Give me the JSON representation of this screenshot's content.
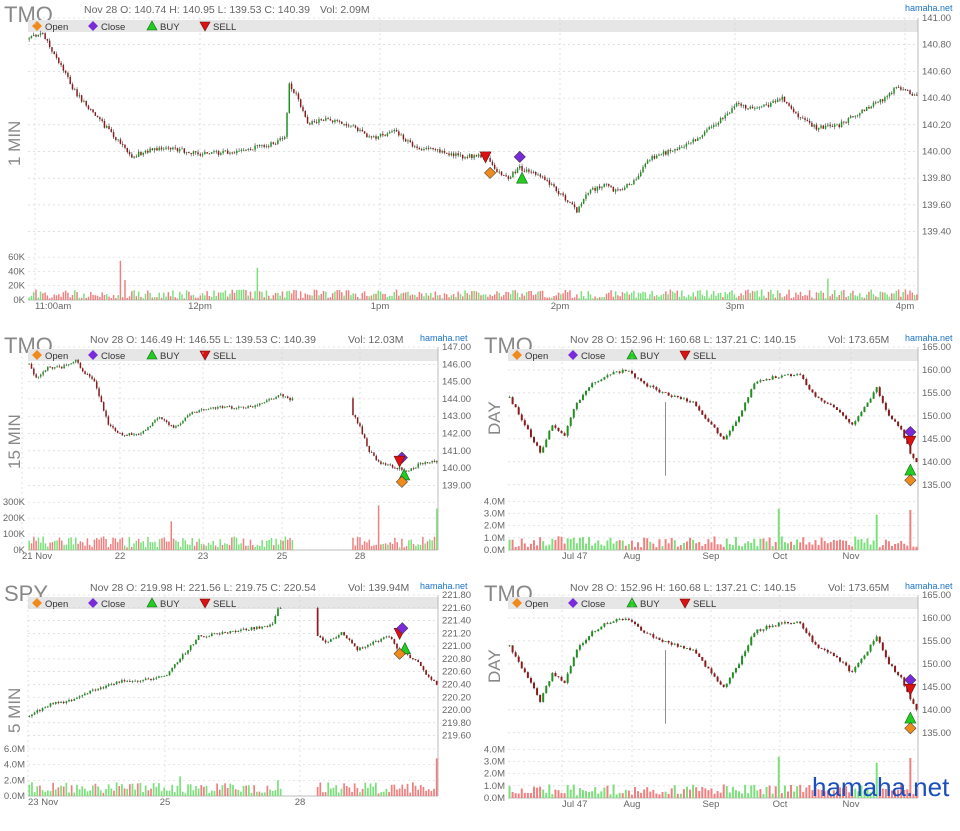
{
  "site": "hamaha.net",
  "watermark": "hamaha.net",
  "legend": {
    "open": "Open",
    "close": "Close",
    "buy": "BUY",
    "sell": "SELL"
  },
  "colors": {
    "up": "#1f8f1f",
    "down": "#8b1a1a",
    "vol_up": "#7be07b",
    "vol_down": "#f08080",
    "open": "#f08a1c",
    "close": "#7a2ad8",
    "buy": "#22cc22",
    "sell": "#dd1111",
    "band": "#e6e6e6",
    "grid": "#cfcfcf",
    "text": "#666666",
    "link": "#1a73c9"
  },
  "chart_data": [
    {
      "id": "tmo1m",
      "type": "candlestick",
      "symbol": "TMO",
      "period": "1 MIN",
      "info": "Nov 28 O: 140.74 H: 140.95 L: 139.53 C: 140.39",
      "vol": "Vol: 2.09M",
      "ylim": [
        139.3,
        141.0
      ],
      "yticks": [
        "141.00",
        "140.80",
        "140.60",
        "140.40",
        "140.20",
        "140.00",
        "139.80",
        "139.60",
        "139.40"
      ],
      "vlim": [
        0,
        70000
      ],
      "vticks": [
        "60K",
        "40K",
        "20K",
        "0K"
      ],
      "xticks": [
        "11:00am",
        "12pm",
        "1pm",
        "2pm",
        "3pm",
        "4pm"
      ],
      "anchors": [
        [
          0,
          140.84
        ],
        [
          5,
          140.9
        ],
        [
          12,
          140.7
        ],
        [
          20,
          140.45
        ],
        [
          30,
          140.25
        ],
        [
          38,
          140.1
        ],
        [
          45,
          139.95
        ],
        [
          50,
          140.0
        ],
        [
          60,
          140.03
        ],
        [
          75,
          139.98
        ],
        [
          90,
          140.0
        ],
        [
          105,
          140.05
        ],
        [
          112,
          140.1
        ],
        [
          114,
          140.5
        ],
        [
          118,
          140.4
        ],
        [
          122,
          140.2
        ],
        [
          130,
          140.25
        ],
        [
          140,
          140.2
        ],
        [
          150,
          140.1
        ],
        [
          160,
          140.15
        ],
        [
          170,
          140.03
        ],
        [
          180,
          140.0
        ],
        [
          190,
          139.96
        ],
        [
          200,
          139.97
        ],
        [
          205,
          139.85
        ],
        [
          210,
          139.8
        ],
        [
          215,
          139.88
        ],
        [
          225,
          139.8
        ],
        [
          235,
          139.65
        ],
        [
          240,
          139.55
        ],
        [
          245,
          139.7
        ],
        [
          252,
          139.75
        ],
        [
          258,
          139.7
        ],
        [
          265,
          139.78
        ],
        [
          272,
          139.95
        ],
        [
          280,
          140.0
        ],
        [
          290,
          140.07
        ],
        [
          300,
          140.2
        ],
        [
          310,
          140.35
        ],
        [
          320,
          140.32
        ],
        [
          330,
          140.4
        ],
        [
          338,
          140.25
        ],
        [
          345,
          140.18
        ],
        [
          355,
          140.2
        ],
        [
          365,
          140.3
        ],
        [
          375,
          140.4
        ],
        [
          380,
          140.48
        ],
        [
          388,
          140.42
        ]
      ],
      "volume_spikes": [
        [
          40,
          55000
        ],
        [
          42,
          28000
        ],
        [
          100,
          45000
        ],
        [
          205,
          12000
        ],
        [
          216,
          9000
        ],
        [
          350,
          30000
        ],
        [
          392,
          48000
        ],
        [
          400,
          50000
        ]
      ],
      "markers": [
        {
          "type": "sell",
          "x": 200,
          "price": 139.96
        },
        {
          "type": "open",
          "x": 202,
          "price": 139.84
        },
        {
          "type": "close",
          "x": 215,
          "price": 139.96
        },
        {
          "type": "buy",
          "x": 216,
          "price": 139.8
        }
      ]
    },
    {
      "id": "tmo15",
      "type": "candlestick",
      "symbol": "TMO",
      "period": "15 MIN",
      "info": "Nov 28 O: 146.49 H: 146.55 L: 139.53 C: 140.39",
      "vol": "Vol: 12.03M",
      "ylim": [
        138.5,
        147.0
      ],
      "yticks": [
        "147.00",
        "146.00",
        "145.00",
        "144.00",
        "143.00",
        "142.00",
        "141.00",
        "140.00",
        "139.00"
      ],
      "vlim": [
        0,
        320000
      ],
      "vticks": [
        "300K",
        "200K",
        "100K",
        "0K"
      ],
      "xticks": [
        "21 Nov",
        "22",
        "23",
        "25",
        "28"
      ],
      "anchors": [
        [
          0,
          146.0
        ],
        [
          3,
          145.2
        ],
        [
          8,
          145.8
        ],
        [
          14,
          145.8
        ],
        [
          20,
          146.2
        ],
        [
          24,
          145.5
        ],
        [
          28,
          145.0
        ],
        [
          34,
          142.5
        ],
        [
          40,
          141.9
        ],
        [
          48,
          142.0
        ],
        [
          52,
          142.5
        ],
        [
          56,
          143.0
        ],
        [
          62,
          142.3
        ],
        [
          70,
          143.2
        ],
        [
          80,
          143.5
        ],
        [
          95,
          143.5
        ],
        [
          102,
          143.9
        ],
        [
          108,
          144.2
        ],
        [
          112,
          144.0
        ],
        [
          140,
          143.0
        ],
        [
          146,
          141.0
        ],
        [
          150,
          140.3
        ],
        [
          158,
          140.0
        ],
        [
          163,
          139.8
        ],
        [
          168,
          140.3
        ],
        [
          175,
          140.4
        ]
      ],
      "gap": [
        113,
        139
      ],
      "volume_spikes": [
        [
          61,
          180000
        ],
        [
          150,
          280000
        ],
        [
          175,
          260000
        ]
      ],
      "markers": [
        {
          "type": "close",
          "x": 160,
          "price": 140.6
        },
        {
          "type": "sell",
          "x": 159,
          "price": 140.4
        },
        {
          "type": "buy",
          "x": 161,
          "price": 139.6
        },
        {
          "type": "open",
          "x": 160,
          "price": 139.2
        }
      ]
    },
    {
      "id": "tmoday1",
      "type": "candlestick",
      "symbol": "TMO",
      "period": "DAY",
      "info": "Nov 28 O: 152.96 H: 160.68 L: 137.21 C: 140.15",
      "vol": "Vol: 173.65M",
      "ylim": [
        133,
        165
      ],
      "yticks": [
        "165.00",
        "160.00",
        "155.00",
        "150.00",
        "145.00",
        "140.00",
        "135.00"
      ],
      "vlim": [
        0,
        4200000
      ],
      "vticks": [
        "4.0M",
        "3.0M",
        "2.0M",
        "1.0M",
        "0.0M"
      ],
      "xticks": [
        "Jul 47",
        "Aug",
        "Sep",
        "Oct",
        "Nov"
      ],
      "anchors": [
        [
          0,
          154
        ],
        [
          5,
          148
        ],
        [
          10,
          142
        ],
        [
          14,
          148
        ],
        [
          18,
          146
        ],
        [
          22,
          153
        ],
        [
          27,
          157
        ],
        [
          32,
          159
        ],
        [
          38,
          160
        ],
        [
          44,
          157
        ],
        [
          50,
          155
        ],
        [
          55,
          154
        ],
        [
          60,
          153
        ],
        [
          66,
          148
        ],
        [
          70,
          145
        ],
        [
          75,
          150
        ],
        [
          80,
          157
        ],
        [
          84,
          158
        ],
        [
          90,
          159
        ],
        [
          95,
          159
        ],
        [
          100,
          154
        ],
        [
          106,
          152
        ],
        [
          112,
          148
        ],
        [
          116,
          152
        ],
        [
          120,
          156
        ],
        [
          124,
          150
        ],
        [
          128,
          147
        ],
        [
          131,
          142
        ],
        [
          133,
          140
        ]
      ],
      "wicks": [
        [
          51,
          153,
          137
        ]
      ],
      "volume_spikes": [
        [
          88,
          3400000
        ],
        [
          120,
          2900000
        ],
        [
          131,
          3300000
        ]
      ],
      "markers": [
        {
          "type": "close",
          "x": 131,
          "price": 146.5
        },
        {
          "type": "sell",
          "x": 131,
          "price": 144.5
        },
        {
          "type": "buy",
          "x": 131,
          "price": 138.2
        },
        {
          "type": "open",
          "x": 131,
          "price": 136.0
        }
      ]
    },
    {
      "id": "spy5",
      "type": "candlestick",
      "symbol": "SPY",
      "period": "5 MIN",
      "info": "Nov 28 O: 219.98 H: 221.56 L: 219.75 C: 220.54",
      "vol": "Vol: 139.94M",
      "ylim": [
        219.5,
        221.8
      ],
      "yticks": [
        "221.80",
        "221.60",
        "221.40",
        "221.20",
        "221.00",
        "220.80",
        "220.60",
        "220.40",
        "220.20",
        "220.00",
        "219.80",
        "219.60"
      ],
      "vlim": [
        0,
        6500000
      ],
      "vticks": [
        "6.0M",
        "4.0M",
        "2.0M",
        "0.0M"
      ],
      "xticks": [
        "23 Nov",
        "25",
        "28"
      ],
      "anchors": [
        [
          0,
          219.9
        ],
        [
          8,
          220.1
        ],
        [
          16,
          220.15
        ],
        [
          24,
          220.3
        ],
        [
          34,
          220.45
        ],
        [
          46,
          220.48
        ],
        [
          52,
          220.55
        ],
        [
          58,
          220.85
        ],
        [
          64,
          221.15
        ],
        [
          72,
          221.2
        ],
        [
          80,
          221.25
        ],
        [
          88,
          221.3
        ],
        [
          92,
          221.35
        ],
        [
          94,
          221.6
        ],
        [
          98,
          221.62
        ],
        [
          112,
          221.05
        ],
        [
          118,
          221.2
        ],
        [
          124,
          220.95
        ],
        [
          130,
          221.05
        ],
        [
          136,
          221.15
        ],
        [
          140,
          220.9
        ],
        [
          146,
          220.8
        ],
        [
          150,
          220.55
        ],
        [
          154,
          220.4
        ]
      ],
      "gap": [
        95,
        109
      ],
      "volume_spikes": [
        [
          57,
          2500000
        ],
        [
          94,
          2000000
        ],
        [
          154,
          4800000
        ]
      ],
      "markers": [
        {
          "type": "sell",
          "x": 140,
          "price": 221.2
        },
        {
          "type": "close",
          "x": 141,
          "price": 221.28
        },
        {
          "type": "buy",
          "x": 142,
          "price": 220.96
        },
        {
          "type": "open",
          "x": 140,
          "price": 220.88
        }
      ]
    },
    {
      "id": "tmoday2",
      "type": "candlestick",
      "symbol": "TMO",
      "period": "DAY",
      "info": "Nov 28 O: 152.96 H: 160.68 L: 137.21 C: 140.15",
      "vol": "Vol: 173.65M",
      "ylim": [
        133,
        165
      ],
      "yticks": [
        "165.00",
        "160.00",
        "155.00",
        "150.00",
        "145.00",
        "140.00",
        "135.00"
      ],
      "vlim": [
        0,
        4200000
      ],
      "vticks": [
        "4.0M",
        "3.0M",
        "2.0M",
        "1.0M",
        "0.0M"
      ],
      "xticks": [
        "Jul 47",
        "Aug",
        "Sep",
        "Oct",
        "Nov"
      ],
      "anchors": [
        [
          0,
          154
        ],
        [
          5,
          148
        ],
        [
          10,
          142
        ],
        [
          14,
          148
        ],
        [
          18,
          146
        ],
        [
          22,
          153
        ],
        [
          27,
          157
        ],
        [
          32,
          159
        ],
        [
          38,
          160
        ],
        [
          44,
          157
        ],
        [
          50,
          155
        ],
        [
          55,
          154
        ],
        [
          60,
          153
        ],
        [
          66,
          148
        ],
        [
          70,
          145
        ],
        [
          75,
          150
        ],
        [
          80,
          157
        ],
        [
          84,
          158
        ],
        [
          90,
          159
        ],
        [
          95,
          159
        ],
        [
          100,
          154
        ],
        [
          106,
          152
        ],
        [
          112,
          148
        ],
        [
          116,
          152
        ],
        [
          120,
          156
        ],
        [
          124,
          150
        ],
        [
          128,
          147
        ],
        [
          131,
          142
        ],
        [
          133,
          140
        ]
      ],
      "wicks": [
        [
          51,
          153,
          137
        ]
      ],
      "volume_spikes": [
        [
          88,
          3400000
        ],
        [
          120,
          2900000
        ],
        [
          131,
          3300000
        ]
      ],
      "markers": [
        {
          "type": "close",
          "x": 131,
          "price": 146.5
        },
        {
          "type": "sell",
          "x": 131,
          "price": 144.5
        },
        {
          "type": "buy",
          "x": 131,
          "price": 138.2
        },
        {
          "type": "open",
          "x": 131,
          "price": 136.0
        }
      ]
    }
  ]
}
